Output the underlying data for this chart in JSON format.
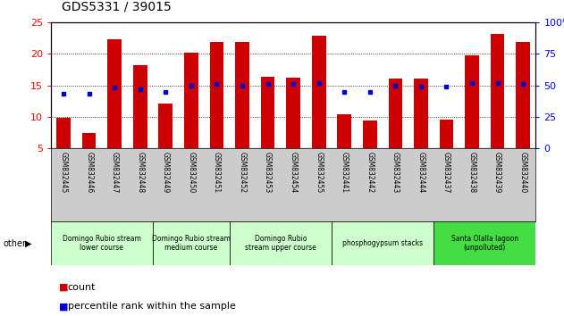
{
  "title": "GDS5331 / 39015",
  "samples": [
    "GSM832445",
    "GSM832446",
    "GSM832447",
    "GSM832448",
    "GSM832449",
    "GSM832450",
    "GSM832451",
    "GSM832452",
    "GSM832453",
    "GSM832454",
    "GSM832455",
    "GSM832441",
    "GSM832442",
    "GSM832443",
    "GSM832444",
    "GSM832437",
    "GSM832438",
    "GSM832439",
    "GSM832440"
  ],
  "counts": [
    9.8,
    7.5,
    22.3,
    18.2,
    12.1,
    20.2,
    21.8,
    21.9,
    16.3,
    16.2,
    22.8,
    10.4,
    9.5,
    16.0,
    16.0,
    9.6,
    19.7,
    23.2,
    21.8
  ],
  "percentiles": [
    43,
    43,
    48,
    47,
    45,
    50,
    51,
    50,
    51,
    51,
    52,
    45,
    45,
    50,
    49,
    49,
    52,
    52,
    51
  ],
  "bar_color": "#cc0000",
  "dot_color": "#0000cc",
  "ylim_left": [
    5,
    25
  ],
  "yticks_left": [
    5,
    10,
    15,
    20,
    25
  ],
  "ylim_right": [
    0,
    100
  ],
  "yticks_right": [
    0,
    25,
    50,
    75,
    100
  ],
  "groups": [
    {
      "label": "Domingo Rubio stream\nlower course",
      "color": "#ccffcc",
      "start": 0,
      "end": 4
    },
    {
      "label": "Domingo Rubio stream\nmedium course",
      "color": "#ccffcc",
      "start": 4,
      "end": 7
    },
    {
      "label": "Domingo Rubio\nstream upper course",
      "color": "#ccffcc",
      "start": 7,
      "end": 11
    },
    {
      "label": "phosphogypsum stacks",
      "color": "#ccffcc",
      "start": 11,
      "end": 15
    },
    {
      "label": "Santa Olalla lagoon\n(unpolluted)",
      "color": "#44dd44",
      "start": 15,
      "end": 19
    }
  ],
  "legend_count_color": "#cc0000",
  "legend_pct_color": "#0000cc",
  "bg_plot": "#ffffff",
  "xtick_bg": "#cccccc",
  "title_fontsize": 10,
  "bar_width": 0.55
}
